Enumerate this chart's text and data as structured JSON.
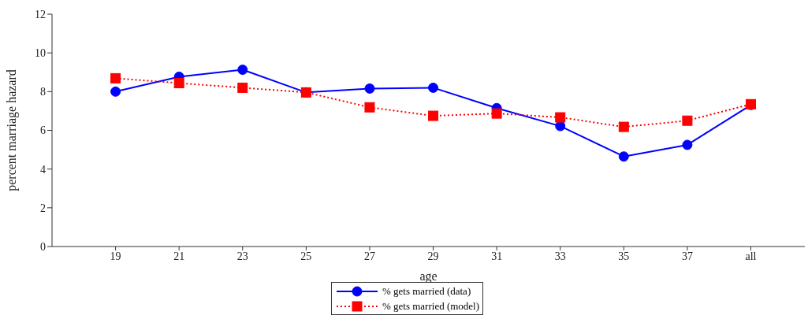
{
  "chart_data": {
    "type": "line",
    "xlabel": "age",
    "ylabel": "percent marriage hazard",
    "categories": [
      "19",
      "21",
      "23",
      "25",
      "27",
      "29",
      "31",
      "33",
      "35",
      "37",
      "all"
    ],
    "series": [
      {
        "name": "% gets married (data)",
        "color": "#0000ff",
        "marker": "circle",
        "line_style": "solid",
        "values": [
          8.0,
          8.77,
          9.13,
          7.96,
          8.16,
          8.2,
          7.15,
          6.22,
          4.65,
          5.25,
          7.31
        ]
      },
      {
        "name": "% gets married (model)",
        "color": "#ff0000",
        "marker": "square",
        "line_style": "dotted",
        "values": [
          8.69,
          8.44,
          8.2,
          7.96,
          7.19,
          6.75,
          6.87,
          6.67,
          6.18,
          6.5,
          7.35
        ]
      }
    ],
    "ylim": [
      0,
      12
    ],
    "yticks": [
      0,
      2,
      4,
      6,
      8,
      10,
      12
    ],
    "legend": "bottom"
  }
}
